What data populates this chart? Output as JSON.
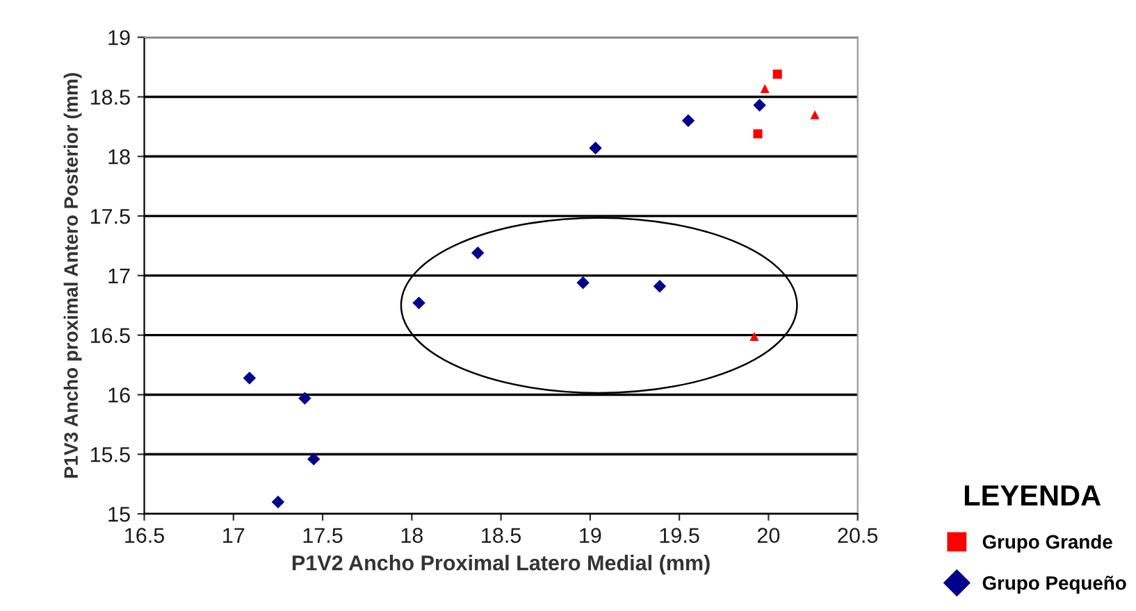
{
  "chart_data": {
    "type": "scatter",
    "xlabel": "P1V2 Ancho Proximal Latero Medial (mm)",
    "ylabel": "P1V3 Ancho proximal Antero Posterior (mm)",
    "legend_title": "LEYENDA",
    "legend": "bottom right",
    "grid": "y",
    "xlim": [
      16.5,
      20.5
    ],
    "xticks": [
      16.5,
      17,
      17.5,
      18,
      18.5,
      19,
      19.5,
      20,
      20.5
    ],
    "ylim": [
      15,
      19
    ],
    "yticks": [
      15,
      15.5,
      16,
      16.5,
      17,
      17.5,
      18,
      18.5,
      19
    ],
    "series": [
      {
        "name": "Grupo Grande",
        "color": "#ff0000",
        "marker": "square",
        "x": [
          20.05,
          19.94
        ],
        "values": [
          18.69,
          18.19
        ]
      },
      {
        "color": "#ff0000",
        "marker": "triangle",
        "x": [
          19.98,
          20.26,
          19.92
        ],
        "values": [
          18.57,
          18.35,
          16.49
        ]
      },
      {
        "name": "Grupo Pequeño",
        "color": "#00008b",
        "marker": "diamond",
        "x": [
          17.09,
          17.4,
          17.45,
          17.25,
          18.04,
          18.37,
          18.96,
          19.39,
          19.03,
          19.55,
          19.95
        ],
        "values": [
          16.14,
          15.97,
          15.46,
          15.1,
          16.77,
          17.19,
          16.94,
          16.91,
          18.07,
          18.3,
          18.43
        ]
      }
    ]
  }
}
